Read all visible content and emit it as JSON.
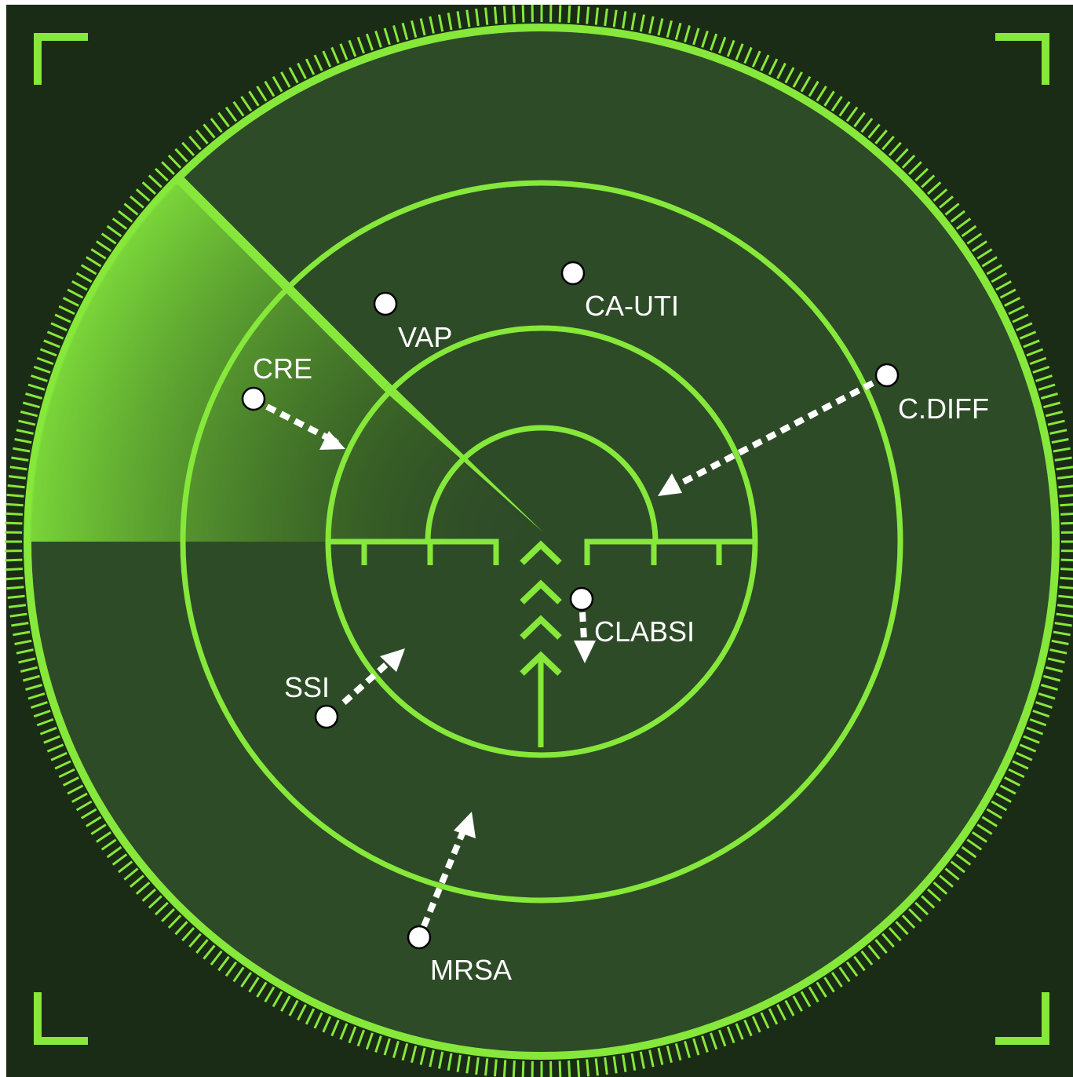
{
  "colors": {
    "background": "#1b2c16",
    "disc": "#2e4b28",
    "line": "#86e83a",
    "sweep": "#5fb52a",
    "blip": "#ffffff",
    "arrow": "#ffffff",
    "label": "#ffffff"
  },
  "blips": [
    {
      "id": "cre",
      "label": "CRE"
    },
    {
      "id": "vap",
      "label": "VAP"
    },
    {
      "id": "ca-uti",
      "label": "CA-UTI"
    },
    {
      "id": "c-diff",
      "label": "C.DIFF"
    },
    {
      "id": "clabsi",
      "label": "CLABSI"
    },
    {
      "id": "ssi",
      "label": "SSI"
    },
    {
      "id": "mrsa",
      "label": "MRSA"
    }
  ]
}
